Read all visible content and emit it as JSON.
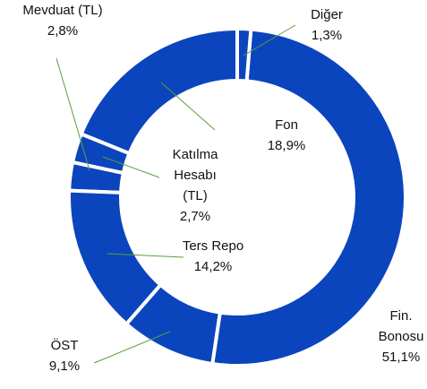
{
  "chart_data": {
    "type": "donut",
    "categories": [
      "Diğer",
      "Fin. Bonosu",
      "ÖST",
      "Ters Repo",
      "Katılma Hesabı (TL)",
      "Mevduat (TL)",
      "Fon"
    ],
    "values": [
      1.3,
      51.1,
      9.1,
      14.2,
      2.7,
      2.8,
      18.9
    ],
    "value_labels": [
      "1,3%",
      "51,1%",
      "9,1%",
      "14,2%",
      "2,7%",
      "2,8%",
      "18,9%"
    ],
    "color": "#0b45bd"
  }
}
